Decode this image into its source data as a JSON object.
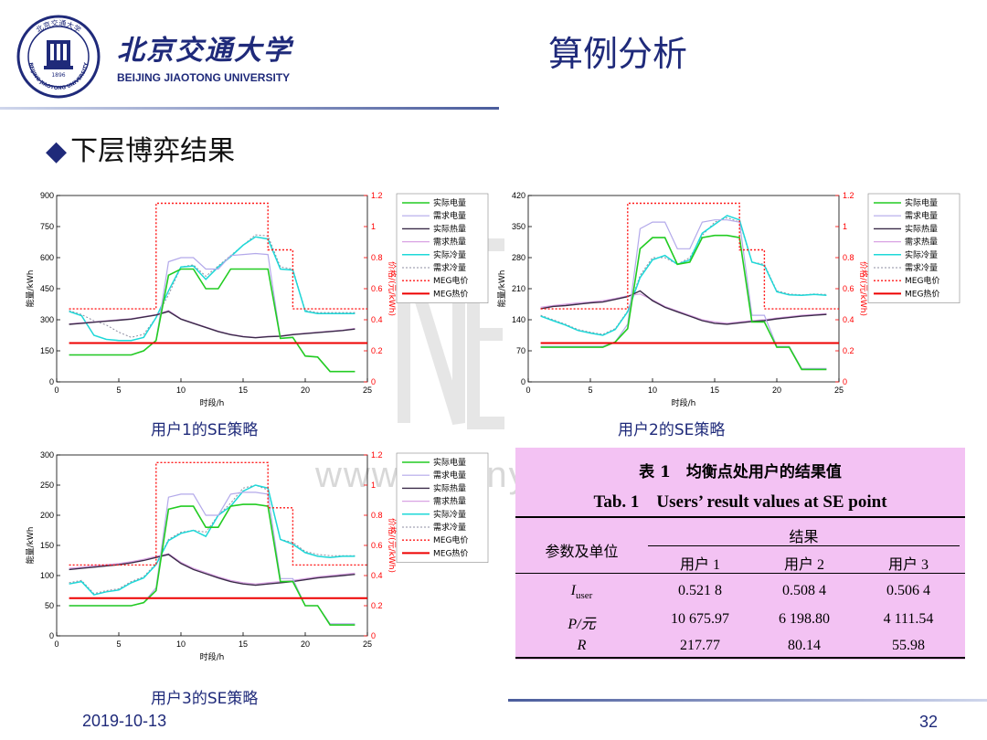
{
  "header": {
    "university_cn": "北京交通大学",
    "university_en": "BEIJING JIAOTONG UNIVERSITY",
    "page_title": "算例分析",
    "seal_text": "北京交通大学",
    "seal_year": "1896",
    "seal_en": "BEIJING JIAOTONG UNIVERSITY"
  },
  "section": {
    "bullet": "◆",
    "title": "下层博弈结果"
  },
  "watermark": "www.mdunyan.com",
  "colors": {
    "actual_elec": "#22cc22",
    "demand_elec": "#b3a9ea",
    "actual_heat": "#3a2a48",
    "demand_heat": "#d9a3e3",
    "actual_cool": "#1ed8d8",
    "demand_cool": "#8d8da0",
    "meg_elec_price": "#ff1a1a",
    "meg_heat_price": "#ee0000",
    "title": "#1f2a7a"
  },
  "legend": [
    "实际电量",
    "需求电量",
    "实际热量",
    "需求热量",
    "实际冷量",
    "需求冷量",
    "MEG电价",
    "MEG热价"
  ],
  "chart_data": [
    {
      "type": "line",
      "caption": "用户1的SE策略",
      "xlabel": "时段/h",
      "ylabel": "能量/kWh",
      "y2label": "价格/(元/kWh)",
      "xlim": [
        0,
        25
      ],
      "ylim": [
        0,
        900
      ],
      "y2lim": [
        0,
        1.2
      ],
      "xticks": [
        0,
        5,
        10,
        15,
        20,
        25
      ],
      "yticks": [
        0,
        150,
        300,
        450,
        600,
        750,
        900
      ],
      "y2ticks": [
        0,
        0.2,
        0.4,
        0.6,
        0.8,
        1,
        1.2
      ],
      "x": [
        1,
        2,
        3,
        4,
        5,
        6,
        7,
        8,
        9,
        10,
        11,
        12,
        13,
        14,
        15,
        16,
        17,
        18,
        19,
        20,
        21,
        22,
        23,
        24
      ],
      "series": [
        {
          "name": "需求冷量",
          "values": [
            345,
            325,
            295,
            275,
            240,
            215,
            230,
            310,
            420,
            555,
            565,
            510,
            560,
            610,
            660,
            710,
            705,
            555,
            545,
            345,
            335,
            335,
            335,
            335
          ]
        },
        {
          "name": "实际冷量",
          "values": [
            340,
            320,
            225,
            205,
            200,
            200,
            215,
            310,
            440,
            555,
            560,
            495,
            555,
            605,
            660,
            700,
            690,
            545,
            540,
            340,
            330,
            330,
            330,
            330
          ]
        },
        {
          "name": "需求热量",
          "values": [
            280,
            285,
            290,
            295,
            300,
            305,
            315,
            325,
            345,
            305,
            285,
            265,
            245,
            230,
            220,
            215,
            220,
            222,
            230,
            235,
            240,
            245,
            250,
            258
          ]
        },
        {
          "name": "实际热量",
          "values": [
            278,
            283,
            288,
            293,
            298,
            303,
            313,
            323,
            340,
            303,
            283,
            263,
            243,
            228,
            218,
            213,
            218,
            220,
            228,
            233,
            238,
            243,
            248,
            255
          ]
        },
        {
          "name": "需求电量",
          "values": [
            130,
            130,
            130,
            130,
            130,
            130,
            150,
            200,
            580,
            600,
            600,
            545,
            545,
            610,
            615,
            620,
            615,
            210,
            215,
            125,
            120,
            50,
            50,
            50
          ]
        },
        {
          "name": "实际电量",
          "values": [
            130,
            130,
            130,
            130,
            130,
            130,
            150,
            200,
            515,
            545,
            545,
            450,
            450,
            545,
            545,
            545,
            545,
            210,
            215,
            125,
            120,
            50,
            50,
            50
          ]
        },
        {
          "name": "MEG电价",
          "axis": "right",
          "values": [
            0.47,
            0.47,
            0.47,
            0.47,
            0.47,
            0.47,
            0.47,
            1.15,
            1.15,
            1.15,
            1.15,
            1.15,
            1.15,
            1.15,
            1.15,
            1.15,
            0.85,
            0.85,
            0.47,
            0.47,
            0.47,
            0.47,
            0.47,
            0.47
          ]
        },
        {
          "name": "MEG热价",
          "axis": "right",
          "values": [
            0.25,
            0.25,
            0.25,
            0.25,
            0.25,
            0.25,
            0.25,
            0.25,
            0.25,
            0.25,
            0.25,
            0.25,
            0.25,
            0.25,
            0.25,
            0.25,
            0.25,
            0.25,
            0.25,
            0.25,
            0.25,
            0.25,
            0.25,
            0.25
          ]
        }
      ]
    },
    {
      "type": "line",
      "caption": "用户2的SE策略",
      "xlabel": "时段/h",
      "ylabel": "能量/kWh",
      "y2label": "价格/(元/kWh)",
      "xlim": [
        0,
        25
      ],
      "ylim": [
        0,
        420
      ],
      "y2lim": [
        0,
        1.2
      ],
      "xticks": [
        0,
        5,
        10,
        15,
        20,
        25
      ],
      "yticks": [
        0,
        70,
        140,
        210,
        280,
        350,
        420
      ],
      "y2ticks": [
        0,
        0.2,
        0.4,
        0.6,
        0.8,
        1,
        1.2
      ],
      "x": [
        1,
        2,
        3,
        4,
        5,
        6,
        7,
        8,
        9,
        10,
        11,
        12,
        13,
        14,
        15,
        16,
        17,
        18,
        19,
        20,
        21,
        22,
        23,
        24
      ],
      "series": [
        {
          "name": "需求冷量",
          "values": [
            150,
            140,
            130,
            118,
            112,
            107,
            120,
            160,
            240,
            280,
            280,
            265,
            280,
            330,
            360,
            370,
            360,
            270,
            265,
            205,
            198,
            196,
            198,
            197
          ]
        },
        {
          "name": "实际冷量",
          "values": [
            148,
            138,
            128,
            116,
            110,
            105,
            118,
            158,
            235,
            275,
            285,
            265,
            275,
            335,
            355,
            375,
            365,
            270,
            262,
            203,
            196,
            195,
            197,
            195
          ]
        },
        {
          "name": "需求热量",
          "values": [
            168,
            172,
            175,
            178,
            180,
            183,
            188,
            194,
            198,
            185,
            170,
            160,
            150,
            140,
            135,
            132,
            135,
            138,
            140,
            144,
            147,
            150,
            152,
            154
          ]
        },
        {
          "name": "实际热量",
          "values": [
            165,
            170,
            172,
            175,
            178,
            180,
            186,
            192,
            205,
            183,
            168,
            158,
            148,
            138,
            132,
            130,
            133,
            136,
            138,
            142,
            145,
            148,
            150,
            152
          ]
        },
        {
          "name": "需求电量",
          "values": [
            80,
            80,
            80,
            80,
            80,
            80,
            90,
            130,
            345,
            360,
            360,
            300,
            300,
            360,
            365,
            365,
            360,
            150,
            150,
            80,
            80,
            30,
            30,
            30
          ]
        },
        {
          "name": "实际电量",
          "values": [
            78,
            78,
            78,
            78,
            78,
            78,
            90,
            120,
            300,
            325,
            325,
            265,
            270,
            325,
            330,
            330,
            325,
            135,
            135,
            78,
            78,
            28,
            28,
            28
          ]
        },
        {
          "name": "MEG电价",
          "axis": "right",
          "values": [
            0.47,
            0.47,
            0.47,
            0.47,
            0.47,
            0.47,
            0.47,
            1.15,
            1.15,
            1.15,
            1.15,
            1.15,
            1.15,
            1.15,
            1.15,
            1.15,
            0.85,
            0.85,
            0.47,
            0.47,
            0.47,
            0.47,
            0.47,
            0.47
          ]
        },
        {
          "name": "MEG热价",
          "axis": "right",
          "values": [
            0.25,
            0.25,
            0.25,
            0.25,
            0.25,
            0.25,
            0.25,
            0.25,
            0.25,
            0.25,
            0.25,
            0.25,
            0.25,
            0.25,
            0.25,
            0.25,
            0.25,
            0.25,
            0.25,
            0.25,
            0.25,
            0.25,
            0.25,
            0.25
          ]
        }
      ]
    },
    {
      "type": "line",
      "caption": "用户3的SE策略",
      "xlabel": "时段/h",
      "ylabel": "能量/kWh",
      "y2label": "价格/(元/kWh)",
      "xlim": [
        0,
        25
      ],
      "ylim": [
        0,
        300
      ],
      "y2lim": [
        0,
        1.2
      ],
      "xticks": [
        0,
        5,
        10,
        15,
        20,
        25
      ],
      "yticks": [
        0,
        50,
        100,
        150,
        200,
        250,
        300
      ],
      "y2ticks": [
        0,
        0.2,
        0.4,
        0.6,
        0.8,
        1,
        1.2
      ],
      "x": [
        1,
        2,
        3,
        4,
        5,
        6,
        7,
        8,
        9,
        10,
        11,
        12,
        13,
        14,
        15,
        16,
        17,
        18,
        19,
        20,
        21,
        22,
        23,
        24
      ],
      "series": [
        {
          "name": "需求冷量",
          "values": [
            88,
            92,
            70,
            75,
            78,
            90,
            98,
            120,
            160,
            172,
            175,
            172,
            200,
            220,
            245,
            250,
            242,
            160,
            155,
            140,
            135,
            133,
            133,
            133
          ]
        },
        {
          "name": "实际冷量",
          "values": [
            86,
            90,
            68,
            73,
            76,
            88,
            96,
            118,
            158,
            170,
            175,
            165,
            200,
            215,
            240,
            250,
            245,
            160,
            152,
            138,
            132,
            130,
            132,
            132
          ]
        },
        {
          "name": "需求热量",
          "values": [
            112,
            114,
            116,
            118,
            120,
            123,
            127,
            132,
            136,
            122,
            112,
            105,
            98,
            92,
            88,
            86,
            88,
            90,
            92,
            95,
            98,
            100,
            102,
            104
          ]
        },
        {
          "name": "实际热量",
          "values": [
            110,
            112,
            114,
            116,
            118,
            121,
            125,
            130,
            135,
            120,
            110,
            103,
            96,
            90,
            86,
            84,
            86,
            88,
            90,
            93,
            96,
            98,
            100,
            102
          ]
        },
        {
          "name": "需求电量",
          "values": [
            50,
            50,
            50,
            50,
            50,
            50,
            55,
            80,
            230,
            235,
            235,
            200,
            200,
            235,
            238,
            238,
            235,
            95,
            95,
            50,
            50,
            20,
            20,
            20
          ]
        },
        {
          "name": "实际电量",
          "values": [
            50,
            50,
            50,
            50,
            50,
            50,
            55,
            75,
            210,
            215,
            215,
            180,
            180,
            215,
            218,
            218,
            215,
            90,
            90,
            50,
            50,
            18,
            18,
            18
          ]
        },
        {
          "name": "MEG电价",
          "axis": "right",
          "values": [
            0.47,
            0.47,
            0.47,
            0.47,
            0.47,
            0.47,
            0.47,
            1.15,
            1.15,
            1.15,
            1.15,
            1.15,
            1.15,
            1.15,
            1.15,
            1.15,
            0.85,
            0.85,
            0.47,
            0.47,
            0.47,
            0.47,
            0.47,
            0.47
          ]
        },
        {
          "name": "MEG热价",
          "axis": "right",
          "values": [
            0.25,
            0.25,
            0.25,
            0.25,
            0.25,
            0.25,
            0.25,
            0.25,
            0.25,
            0.25,
            0.25,
            0.25,
            0.25,
            0.25,
            0.25,
            0.25,
            0.25,
            0.25,
            0.25,
            0.25,
            0.25,
            0.25,
            0.25,
            0.25
          ]
        }
      ]
    },
    {
      "type": "table",
      "title_cn": "表 1　均衡点处用户的结果值",
      "title_en": "Tab. 1　Users’ result values at SE point",
      "row_header": "参数及单位",
      "group_header": "结果",
      "columns": [
        "用户 1",
        "用户 2",
        "用户 3"
      ],
      "rows": [
        {
          "param": "I",
          "sub": "user",
          "values": [
            "0.521 8",
            "0.508 4",
            "0.506 4"
          ]
        },
        {
          "param": "P/元",
          "sub": "",
          "values": [
            "10 675.97",
            "6 198.80",
            "4 111.54"
          ]
        },
        {
          "param": "R",
          "sub": "",
          "values": [
            "217.77",
            "80.14",
            "55.98"
          ]
        }
      ]
    }
  ],
  "footer": {
    "date": "2019-10-13",
    "page": "32"
  }
}
